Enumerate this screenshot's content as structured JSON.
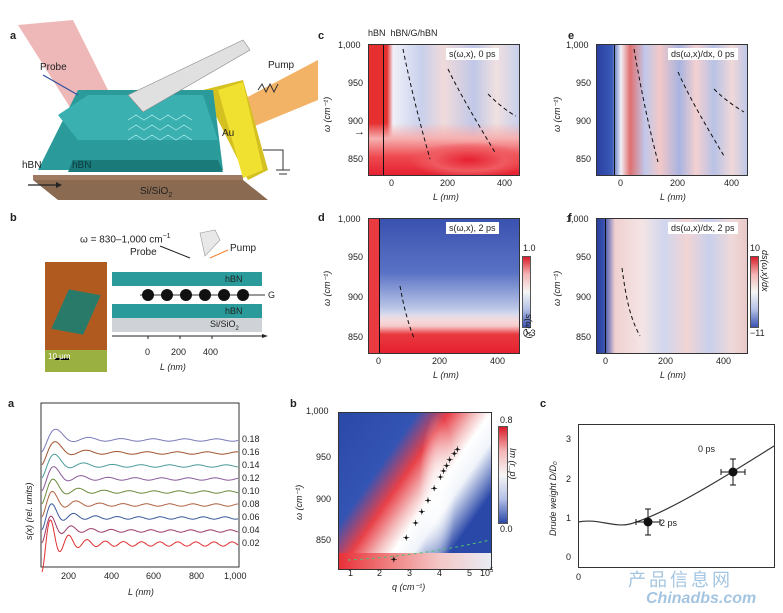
{
  "panel_letters": {
    "a_top": "a",
    "b_top": "b",
    "c": "c",
    "d": "d",
    "e": "e",
    "f": "f",
    "a_bot": "a",
    "b_bot": "b",
    "c_bot": "c"
  },
  "schematic": {
    "probe": "Probe",
    "pump": "Pump",
    "hbn_left": "hBN",
    "hbn_mid": "hBN",
    "au": "Au",
    "substrate": "Si/SiO",
    "substrate_sub": "2"
  },
  "panel_b": {
    "omega_range": "ω = 830–1,000 cm",
    "omega_sup": "−1",
    "probe": "Probe",
    "pump": "Pump",
    "hbn_top": "hBN",
    "g": "G",
    "hbn_bottom": "hBN",
    "substrate": "Si/SiO",
    "substrate_sub": "2",
    "scalebar": "10 μm",
    "x_ticks": [
      "0",
      "200",
      "400"
    ],
    "x_label": "L (nm)"
  },
  "panel_c": {
    "top_labels": "hBN  hBN/G/hBN",
    "tag": "s(ω,x), 0 ps",
    "y_ticks": [
      "1,000",
      "950",
      "900",
      "850"
    ],
    "x_ticks": [
      "0",
      "200",
      "400"
    ],
    "y_label": "ω (cm⁻¹)",
    "x_label": "L (nm)"
  },
  "panel_d": {
    "tag": "s(ω,x), 2 ps",
    "y_ticks": [
      "1,000",
      "950",
      "900",
      "850"
    ],
    "x_ticks": [
      "0",
      "200",
      "400"
    ],
    "y_label": "ω (cm⁻¹)",
    "x_label": "L (nm)",
    "cbar_max": "1.0",
    "cbar_min": "0.3",
    "cbar_label": "s(ω,x)"
  },
  "panel_e": {
    "tag": "ds(ω,x)/dx, 0 ps",
    "y_ticks": [
      "1,000",
      "950",
      "900",
      "850"
    ],
    "x_ticks": [
      "0",
      "200",
      "400"
    ],
    "y_label": "ω (cm⁻¹)",
    "x_label": "L (nm)"
  },
  "panel_f": {
    "tag": "ds(ω,x)/dx, 2 ps",
    "y_ticks": [
      "1,000",
      "950",
      "900",
      "850"
    ],
    "x_ticks": [
      "0",
      "200",
      "400"
    ],
    "y_label": "ω (cm⁻¹)",
    "x_label": "L (nm)",
    "cbar_max": "10",
    "cbar_min": "−11",
    "cbar_label": "ds(ω,x)/dx"
  },
  "chart_data": [
    {
      "type": "line",
      "panel": "a (bottom)",
      "ylabel": "s(x) (rel. units)",
      "xlabel": "L (nm)",
      "x_ticks": [
        "200",
        "400",
        "600",
        "800",
        "1,000"
      ],
      "xlim": [
        80,
        1000
      ],
      "series": [
        {
          "name": "0.18",
          "color": "#7a7ab8"
        },
        {
          "name": "0.16",
          "color": "#a0522d"
        },
        {
          "name": "0.14",
          "color": "#4a9a9a"
        },
        {
          "name": "0.12",
          "color": "#8a5a9a"
        },
        {
          "name": "0.10",
          "color": "#6a8a3a"
        },
        {
          "name": "0.08",
          "color": "#b06040"
        },
        {
          "name": "0.06",
          "color": "#3a5a9a"
        },
        {
          "name": "0.04",
          "color": "#9a3a6a"
        },
        {
          "name": "0.02",
          "color": "#e03030"
        }
      ]
    },
    {
      "type": "heatmap",
      "panel": "b (bottom)",
      "ylabel": "ω (cm⁻¹)",
      "xlabel": "q (cm⁻¹)",
      "x_ticks": [
        "1",
        "2",
        "3",
        "4",
        "5"
      ],
      "x_multiplier": "10",
      "x_multiplier_exp": "5",
      "y_ticks": [
        "1,000",
        "950",
        "900",
        "850"
      ],
      "ylim": [
        820,
        1000
      ],
      "cbar_ticks": [
        "0.8",
        "0.0"
      ],
      "cbar_label": "Im (r_p)",
      "points": [
        [
          2.4,
          830
        ],
        [
          2.8,
          855
        ],
        [
          3.1,
          872
        ],
        [
          3.3,
          885
        ],
        [
          3.5,
          898
        ],
        [
          3.7,
          912
        ],
        [
          3.9,
          925
        ],
        [
          4.0,
          932
        ],
        [
          4.1,
          938
        ],
        [
          4.2,
          945
        ],
        [
          4.35,
          952
        ],
        [
          4.45,
          957
        ]
      ]
    },
    {
      "type": "line",
      "panel": "c (bottom)",
      "ylabel": "Drude weight D/D₀",
      "x_ticks": [
        "0"
      ],
      "y_ticks": [
        "0",
        "1",
        "2",
        "3"
      ],
      "ylim": [
        -0.1,
        3.4
      ],
      "points": [
        {
          "label": "2 ps",
          "y": 1.05
        },
        {
          "label": "0 ps",
          "y": 2.25
        }
      ]
    }
  ],
  "watermark": {
    "cn": "产品信息网",
    "en": "Chinadbs.com"
  }
}
